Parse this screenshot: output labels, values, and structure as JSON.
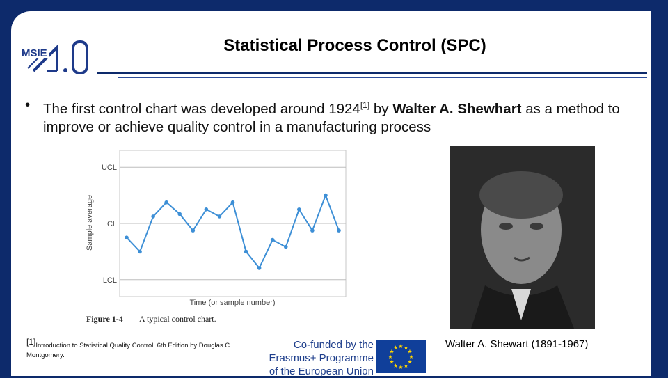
{
  "slide": {
    "title": "Statistical Process Control (SPC)",
    "logo_text": "MSIE",
    "logo_number": "4.0",
    "bullet": {
      "part1": "The first control chart was developed around 1924",
      "ref": "[1]",
      "part2": " by ",
      "name": "Walter A. Shewhart",
      "part3": " as a method to improve or achieve quality control in a manufacturing process"
    },
    "footnote": {
      "ref": "[1]",
      "text": "Introduction to Statistical Quality Control, 6th Edition by Douglas C. Montgomery."
    },
    "funding": {
      "line1": "Co-funded by the",
      "line2": "Erasmus+ Programme",
      "line3": "of the European Union"
    },
    "photo_caption": "Walter A. Shewart (1891-1967)"
  },
  "chart_data": {
    "type": "line",
    "title": "",
    "xlabel": "Time (or sample number)",
    "ylabel": "Sample average",
    "figure_label": "Figure 1-4",
    "figure_caption": "A typical control chart.",
    "ylim": [
      -3,
      3
    ],
    "hlines": [
      {
        "label": "UCL",
        "value": 2.4
      },
      {
        "label": "CL",
        "value": 0
      },
      {
        "label": "LCL",
        "value": -2.4
      }
    ],
    "x": [
      1,
      2,
      3,
      4,
      5,
      6,
      7,
      8,
      9,
      10,
      11,
      12,
      13,
      14,
      15,
      16,
      17
    ],
    "values": [
      -0.6,
      -1.2,
      0.3,
      0.9,
      0.4,
      -0.3,
      0.6,
      0.3,
      0.9,
      -1.2,
      -1.9,
      -0.7,
      -1.0,
      0.6,
      -0.3,
      1.2,
      -0.3
    ],
    "grid": true,
    "series_color": "#3d8fd6"
  },
  "colors": {
    "navy": "#0d2a6b",
    "flag_blue": "#103f9a",
    "flag_star": "#ffd500"
  }
}
